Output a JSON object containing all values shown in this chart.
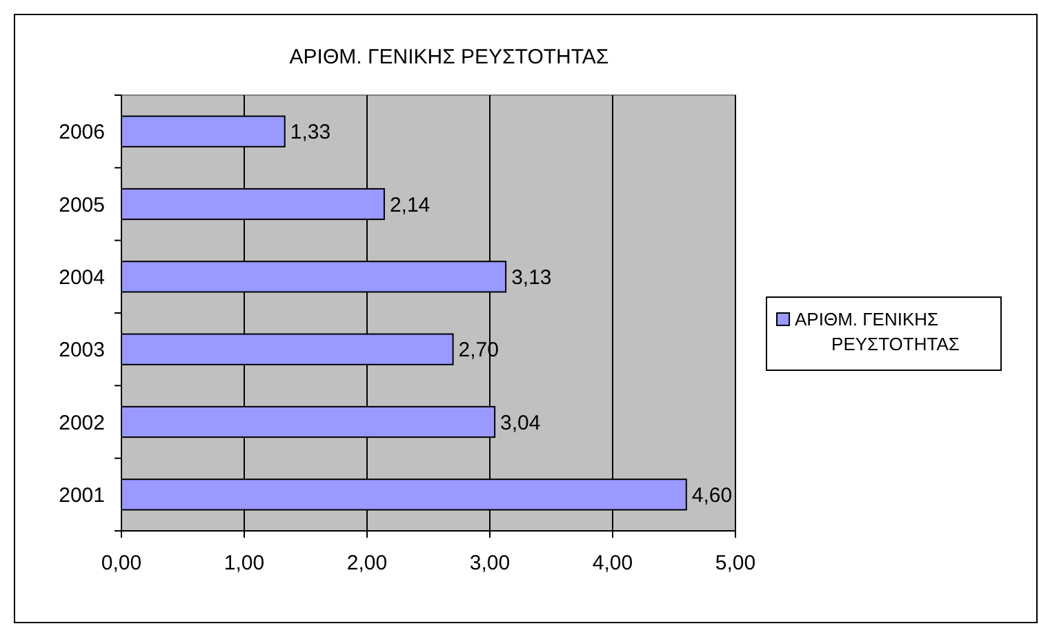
{
  "chart_data": {
    "type": "bar",
    "orientation": "horizontal",
    "title": "ΑΡΙΘΜ. ΓΕΝΙΚΗΣ ΡΕΥΣΤΟΤΗΤΑΣ",
    "categories": [
      "2006",
      "2005",
      "2004",
      "2003",
      "2002",
      "2001"
    ],
    "series": [
      {
        "name": "ΑΡΙΘΜ. ΓΕΝΙΚΗΣ ΡΕΥΣΤΟΤΗΤΑΣ",
        "color": "#9999ff",
        "values": [
          1.33,
          2.14,
          3.13,
          2.7,
          3.04,
          4.6
        ],
        "value_labels": [
          "1,33",
          "2,14",
          "3,13",
          "2,70",
          "3,04",
          "4,60"
        ]
      }
    ],
    "xlim": [
      0,
      5
    ],
    "xticks": [
      {
        "value": 0,
        "label": "0,00"
      },
      {
        "value": 1,
        "label": "1,00"
      },
      {
        "value": 2,
        "label": "2,00"
      },
      {
        "value": 3,
        "label": "3,00"
      },
      {
        "value": 4,
        "label": "4,00"
      },
      {
        "value": 5,
        "label": "5,00"
      }
    ],
    "grid": "x",
    "legend": "right"
  }
}
